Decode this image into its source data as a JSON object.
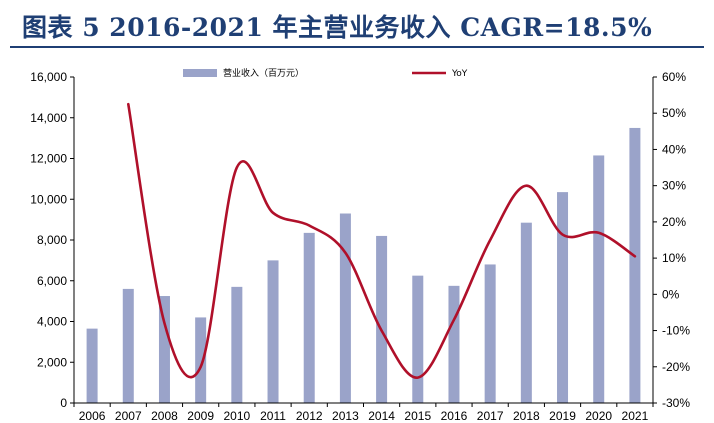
{
  "title": "图表 5   2016-2021 年主营业务收入 CAGR=18.5%",
  "chart_data": {
    "type": "bar+line",
    "categories": [
      "2006",
      "2007",
      "2008",
      "2009",
      "2010",
      "2011",
      "2012",
      "2013",
      "2014",
      "2015",
      "2016",
      "2017",
      "2018",
      "2019",
      "2020",
      "2021"
    ],
    "series": [
      {
        "name": "营业收入（百万元）",
        "type": "bar",
        "axis": "left",
        "color": "#9aa3c9",
        "values": [
          3650,
          5600,
          5250,
          4200,
          5700,
          7000,
          8350,
          9300,
          8200,
          6250,
          5750,
          6800,
          8850,
          10350,
          12150,
          13500
        ]
      },
      {
        "name": "YoY",
        "type": "line",
        "axis": "right",
        "color": "#b0102a",
        "values": [
          null,
          52.5,
          -8,
          -20,
          35,
          22.5,
          19,
          11.5,
          -10,
          -23,
          -7,
          15,
          30,
          16.5,
          17,
          10.5
        ]
      }
    ],
    "y_left": {
      "min": 0,
      "max": 16000,
      "step": 2000,
      "ticks": [
        "0",
        "2,000",
        "4,000",
        "6,000",
        "8,000",
        "10,000",
        "12,000",
        "14,000",
        "16,000"
      ]
    },
    "y_right": {
      "min": -30,
      "max": 60,
      "step": 10,
      "ticks": [
        "-30%",
        "-20%",
        "-10%",
        "0%",
        "10%",
        "20%",
        "30%",
        "40%",
        "50%",
        "60%"
      ]
    },
    "legend_position": "top",
    "grid": false
  }
}
